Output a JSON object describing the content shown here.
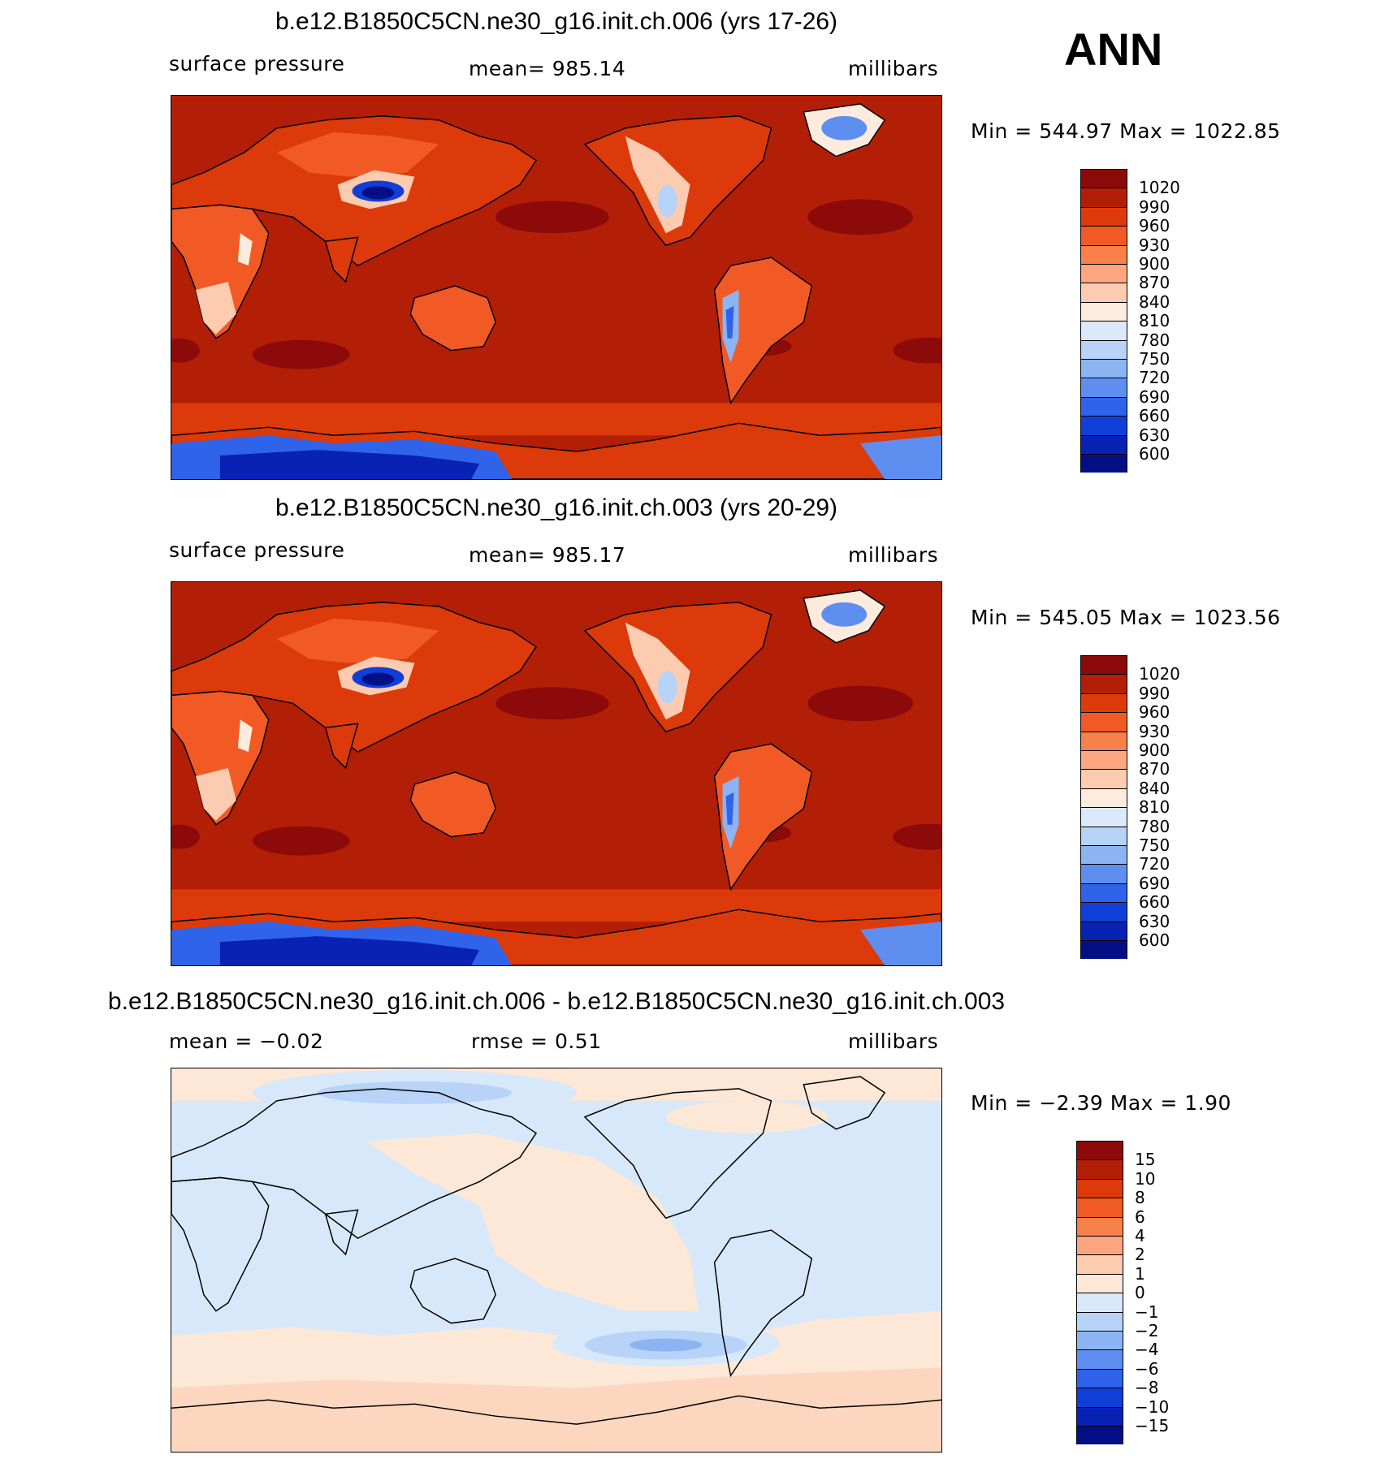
{
  "season": "ANN",
  "panels": [
    {
      "title": "b.e12.B1850C5CN.ne30_g16.init.ch.006 (yrs 17-26)",
      "left_label": "surface pressure",
      "center_label": "mean= 985.14",
      "units": "millibars",
      "minmax": "Min = 544.97 Max = 1022.85"
    },
    {
      "title": "b.e12.B1850C5CN.ne30_g16.init.ch.003 (yrs 20-29)",
      "left_label": "surface pressure",
      "center_label": "mean= 985.17",
      "units": "millibars",
      "minmax": "Min = 545.05 Max = 1023.56"
    },
    {
      "title": "b.e12.B1850C5CN.ne30_g16.init.ch.006 - b.e12.B1850C5CN.ne30_g16.init.ch.003",
      "left_label": "mean =   −0.02",
      "center_label": "rmse =     0.51",
      "units": "millibars",
      "minmax": "Min =   −2.39 Max =     1.90"
    }
  ],
  "colorbars": {
    "pressure": {
      "labels": [
        "1020",
        "990",
        "960",
        "930",
        "900",
        "870",
        "840",
        "810",
        "780",
        "750",
        "720",
        "690",
        "660",
        "630",
        "600"
      ],
      "colors": [
        "#8c0a0a",
        "#b31f06",
        "#dc3a0a",
        "#f15a24",
        "#f8804a",
        "#fca57f",
        "#fdcbb0",
        "#fdebdd",
        "#dbe9fa",
        "#b7d3f8",
        "#8cb4f2",
        "#5e8ff0",
        "#2f63ea",
        "#0f3fd6",
        "#0822b4",
        "#040f86"
      ]
    },
    "difference": {
      "labels": [
        "15",
        "10",
        "8",
        "6",
        "4",
        "2",
        "1",
        "0",
        "−1",
        "−2",
        "−4",
        "−6",
        "−8",
        "−10",
        "−15"
      ],
      "colors": [
        "#8c0a0a",
        "#b31f06",
        "#dc3a0a",
        "#f15a24",
        "#f8804a",
        "#fca57f",
        "#fdcbb0",
        "#fde7d6",
        "#d8e8fb",
        "#b7d3f8",
        "#8cb4f2",
        "#5e8ff0",
        "#2f63ea",
        "#0f3fd6",
        "#0822b4",
        "#040f86"
      ]
    }
  }
}
